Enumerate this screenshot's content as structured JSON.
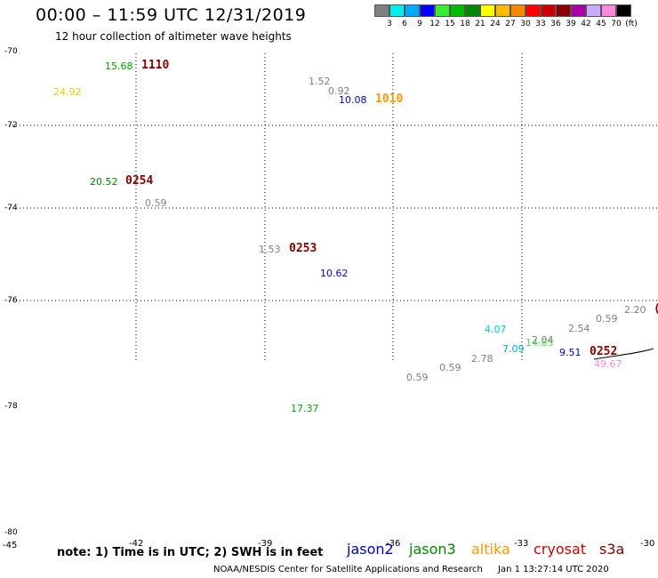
{
  "header": {
    "title": "00:00 – 11:59 UTC 12/31/2019",
    "subtitle": "12 hour collection of altimeter wave heights"
  },
  "color_scale": {
    "colors": [
      "#808080",
      "#00eeee",
      "#00aaff",
      "#0000ff",
      "#33ee33",
      "#00bb00",
      "#008800",
      "#ffff00",
      "#ffbb00",
      "#ff8800",
      "#ff0000",
      "#cc0000",
      "#880000",
      "#aa00aa",
      "#ccaaff",
      "#ff88dd",
      "#000000"
    ],
    "labels": [
      "3",
      "6",
      "9",
      "12",
      "15",
      "18",
      "21",
      "24",
      "27",
      "30",
      "33",
      "36",
      "39",
      "42",
      "45",
      "70",
      "(ft)"
    ]
  },
  "axes": {
    "lat_labels": [
      "-70",
      "-72",
      "-74",
      "-76",
      "-78",
      "-80"
    ],
    "lon_labels": [
      "-45",
      "-42",
      "-39",
      "-36",
      "-33",
      "-30"
    ]
  },
  "map_labels": {
    "values": [
      {
        "text": "15.68",
        "color": "#00aa00"
      },
      {
        "text": "24.92",
        "color": "#eecc00"
      },
      {
        "text": "1.52",
        "color": "#808080"
      },
      {
        "text": "0.92",
        "color": "#808080"
      },
      {
        "text": "10.08",
        "color": "#0000cc"
      },
      {
        "text": "20.52",
        "color": "#008800"
      },
      {
        "text": "0.59",
        "color": "#808080"
      },
      {
        "text": "1.53",
        "color": "#808080"
      },
      {
        "text": "10.62",
        "color": "#0000cc"
      },
      {
        "text": "2.20",
        "color": "#808080"
      },
      {
        "text": "0.59",
        "color": "#808080"
      },
      {
        "text": "2.54",
        "color": "#808080"
      },
      {
        "text": "4.07",
        "color": "#00cccc"
      },
      {
        "text": "2.04",
        "color": "#808080"
      },
      {
        "text": "14.85",
        "color": "#33cc33"
      },
      {
        "text": "7.09",
        "color": "#00aadd"
      },
      {
        "text": "9.51",
        "color": "#0000cc"
      },
      {
        "text": "49.67",
        "color": "#ff88dd"
      },
      {
        "text": "2.78",
        "color": "#808080"
      },
      {
        "text": "0.59",
        "color": "#808080"
      },
      {
        "text": "0.59",
        "color": "#808080"
      },
      {
        "text": "17.37",
        "color": "#00aa00"
      }
    ],
    "times": [
      {
        "text": "1110",
        "color": "#880000"
      },
      {
        "text": "1010",
        "color": "#ff9900"
      },
      {
        "text": "0254",
        "color": "#880000"
      },
      {
        "text": "0253",
        "color": "#880000"
      },
      {
        "text": "0252",
        "color": "#880000"
      }
    ]
  },
  "footer": {
    "note": "note: 1) Time is in UTC; 2) SWH is in feet",
    "legend": [
      {
        "text": "jason2",
        "color": "#0000cc"
      },
      {
        "text": "jason3",
        "color": "#008800"
      },
      {
        "text": "altika",
        "color": "#ff9900"
      },
      {
        "text": "cryosat",
        "color": "#cc0000"
      },
      {
        "text": "s3a",
        "color": "#880000"
      }
    ],
    "credit": "NOAA/NESDIS Center for Satellite Applications and Research",
    "generated": "Jan  1 13:27:14 UTC 2020"
  }
}
